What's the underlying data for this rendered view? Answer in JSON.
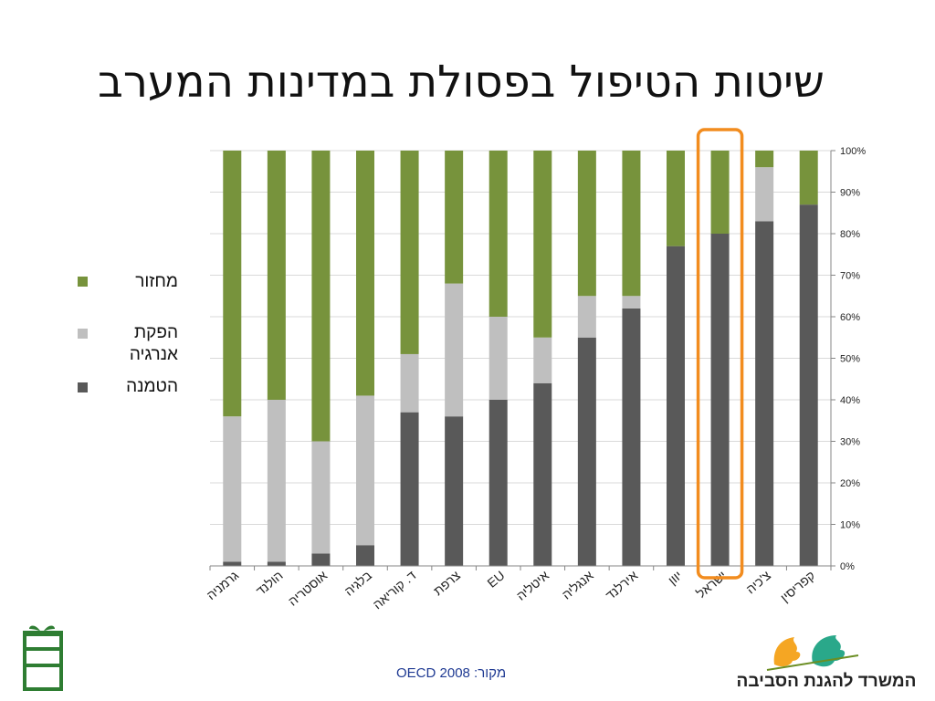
{
  "title": "שיטות הטיפול בפסולת במדינות המערב",
  "source": "מקור: OECD 2008",
  "logos": {
    "left_icon": "green-campaign-logo",
    "right_name": "המשרד להגנת הסביבה",
    "right_icon": "leaves-logo"
  },
  "colors": {
    "landfill": "#595959",
    "energy": "#bfbfbf",
    "recycling": "#77933c",
    "highlight": "#f28c1e"
  },
  "chart_data": {
    "type": "bar",
    "stacked": true,
    "title": "",
    "xlabel": "",
    "ylabel": "",
    "ylim": [
      0,
      100
    ],
    "yaxis_side": "right",
    "yticks": [
      "0%",
      "10%",
      "20%",
      "30%",
      "40%",
      "50%",
      "60%",
      "70%",
      "80%",
      "90%",
      "100%"
    ],
    "categories": [
      "גרמניה",
      "הולנד",
      "אוסטריה",
      "בלגיה",
      "ד. קוריאה",
      "צרפת",
      "EU",
      "איטליה",
      "אנגליה",
      "אירלנד",
      "יוון",
      "ישראל",
      "צ'כיה",
      "קפריסין"
    ],
    "series": [
      {
        "name": "הטמנה",
        "values": [
          1,
          1,
          3,
          5,
          37,
          36,
          40,
          44,
          55,
          62,
          77,
          80,
          83,
          87
        ]
      },
      {
        "name": "הפקת אנרגיה",
        "values": [
          35,
          39,
          27,
          36,
          14,
          32,
          20,
          11,
          10,
          3,
          0,
          0,
          13,
          0
        ]
      },
      {
        "name": "מחזור",
        "values": [
          64,
          60,
          70,
          59,
          49,
          32,
          40,
          45,
          35,
          35,
          23,
          20,
          4,
          13
        ]
      }
    ],
    "highlighted_category": "ישראל",
    "legend": {
      "placement": "left",
      "entries": [
        "מחזור",
        "הפקת",
        "אנרגיה",
        "הטמנה"
      ]
    }
  }
}
